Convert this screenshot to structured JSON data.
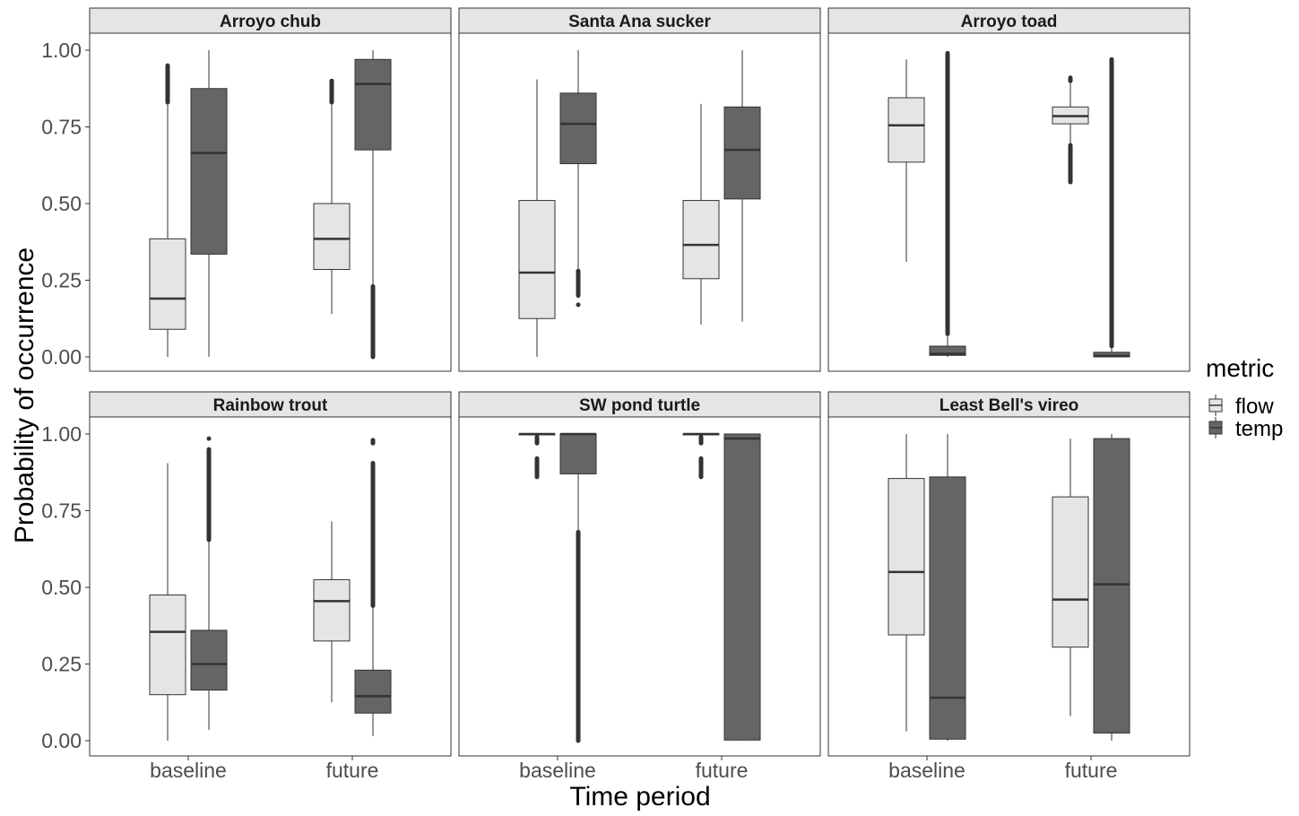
{
  "chart_data": {
    "type": "boxplot",
    "xlabel": "Time period",
    "ylabel": "Probability of occurrence",
    "categories": [
      "baseline",
      "future"
    ],
    "ylim": [
      0,
      1
    ],
    "yticks": [
      0,
      0.25,
      0.5,
      0.75,
      1
    ],
    "ytick_labels": [
      "0.00",
      "0.25",
      "0.50",
      "0.75",
      "1.00"
    ],
    "legend": {
      "title": "metric",
      "position": "right",
      "entries": [
        {
          "name": "flow",
          "color": "#e5e5e5"
        },
        {
          "name": "temp",
          "color": "#656565"
        }
      ]
    },
    "panels": [
      {
        "title": "Arroyo chub",
        "series": {
          "flow": [
            {
              "x": "baseline",
              "low": 0.0,
              "q1": 0.09,
              "median": 0.19,
              "q3": 0.385,
              "high": 0.83,
              "outliers": [
                [
                  0.83,
                  0.95
                ]
              ]
            },
            {
              "x": "future",
              "low": 0.14,
              "q1": 0.285,
              "median": 0.385,
              "q3": 0.5,
              "high": 0.83,
              "outliers": [
                [
                  0.83,
                  0.9
                ]
              ]
            }
          ],
          "temp": [
            {
              "x": "baseline",
              "low": 0.0,
              "q1": 0.335,
              "median": 0.665,
              "q3": 0.875,
              "high": 1.0,
              "outliers": []
            },
            {
              "x": "future",
              "low": 0.23,
              "q1": 0.675,
              "median": 0.89,
              "q3": 0.97,
              "high": 1.0,
              "outliers": [
                [
                  0.0,
                  0.23
                ]
              ]
            }
          ]
        }
      },
      {
        "title": "Santa Ana sucker",
        "series": {
          "flow": [
            {
              "x": "baseline",
              "low": 0.0,
              "q1": 0.125,
              "median": 0.275,
              "q3": 0.51,
              "high": 0.905,
              "outliers": []
            },
            {
              "x": "future",
              "low": 0.105,
              "q1": 0.255,
              "median": 0.365,
              "q3": 0.51,
              "high": 0.825,
              "outliers": []
            }
          ],
          "temp": [
            {
              "x": "baseline",
              "low": 0.28,
              "q1": 0.63,
              "median": 0.76,
              "q3": 0.86,
              "high": 1.0,
              "outliers": [
                [
                  0.2,
                  0.28
                ],
                [
                  0.17,
                  0.17
                ]
              ]
            },
            {
              "x": "future",
              "low": 0.115,
              "q1": 0.515,
              "median": 0.675,
              "q3": 0.815,
              "high": 1.0,
              "outliers": []
            }
          ]
        }
      },
      {
        "title": "Arroyo toad",
        "series": {
          "flow": [
            {
              "x": "baseline",
              "low": 0.31,
              "q1": 0.635,
              "median": 0.755,
              "q3": 0.845,
              "high": 0.97,
              "outliers": []
            },
            {
              "x": "future",
              "low": 0.69,
              "q1": 0.76,
              "median": 0.785,
              "q3": 0.815,
              "high": 0.895,
              "outliers": [
                [
                  0.57,
                  0.69
                ],
                [
                  0.9,
                  0.91
                ]
              ]
            }
          ],
          "temp": [
            {
              "x": "baseline",
              "low": 0.0,
              "q1": 0.005,
              "median": 0.01,
              "q3": 0.035,
              "high": 0.075,
              "outliers": [
                [
                  0.075,
                  0.99
                ]
              ]
            },
            {
              "x": "future",
              "low": 0.0,
              "q1": 0.0,
              "median": 0.003,
              "q3": 0.015,
              "high": 0.035,
              "outliers": [
                [
                  0.035,
                  0.97
                ]
              ]
            }
          ]
        }
      },
      {
        "title": "Rainbow trout",
        "series": {
          "flow": [
            {
              "x": "baseline",
              "low": 0.0,
              "q1": 0.15,
              "median": 0.355,
              "q3": 0.475,
              "high": 0.905,
              "outliers": []
            },
            {
              "x": "future",
              "low": 0.125,
              "q1": 0.325,
              "median": 0.455,
              "q3": 0.525,
              "high": 0.715,
              "outliers": []
            }
          ],
          "temp": [
            {
              "x": "baseline",
              "low": 0.035,
              "q1": 0.165,
              "median": 0.25,
              "q3": 0.36,
              "high": 0.655,
              "outliers": [
                [
                  0.655,
                  0.95
                ],
                [
                  0.985,
                  0.985
                ]
              ]
            },
            {
              "x": "future",
              "low": 0.015,
              "q1": 0.09,
              "median": 0.145,
              "q3": 0.23,
              "high": 0.44,
              "outliers": [
                [
                  0.44,
                  0.905
                ],
                [
                  0.97,
                  0.98
                ]
              ]
            }
          ]
        }
      },
      {
        "title": "SW pond turtle",
        "series": {
          "flow": [
            {
              "x": "baseline",
              "low": 0.999,
              "q1": 0.999,
              "median": 1.0,
              "q3": 1.0,
              "high": 1.0,
              "outliers": [
                [
                  0.86,
                  0.92
                ],
                [
                  0.97,
                  0.99
                ]
              ]
            },
            {
              "x": "future",
              "low": 0.999,
              "q1": 0.999,
              "median": 1.0,
              "q3": 1.0,
              "high": 1.0,
              "outliers": [
                [
                  0.86,
                  0.92
                ],
                [
                  0.97,
                  0.99
                ]
              ]
            }
          ],
          "temp": [
            {
              "x": "baseline",
              "low": 0.68,
              "q1": 0.87,
              "median": 1.0,
              "q3": 1.0,
              "high": 1.0,
              "outliers": [
                [
                  0.0,
                  0.68
                ]
              ]
            },
            {
              "x": "future",
              "low": 0.0,
              "q1": 0.002,
              "median": 0.985,
              "q3": 1.0,
              "high": 1.0,
              "outliers": []
            }
          ]
        }
      },
      {
        "title": "Least Bell's vireo",
        "series": {
          "flow": [
            {
              "x": "baseline",
              "low": 0.03,
              "q1": 0.345,
              "median": 0.55,
              "q3": 0.855,
              "high": 1.0,
              "outliers": []
            },
            {
              "x": "future",
              "low": 0.08,
              "q1": 0.305,
              "median": 0.46,
              "q3": 0.795,
              "high": 0.985,
              "outliers": []
            }
          ],
          "temp": [
            {
              "x": "baseline",
              "low": 0.0,
              "q1": 0.005,
              "median": 0.14,
              "q3": 0.86,
              "high": 1.0,
              "outliers": []
            },
            {
              "x": "future",
              "low": 0.0,
              "q1": 0.025,
              "median": 0.51,
              "q3": 0.985,
              "high": 1.0,
              "outliers": []
            }
          ]
        }
      }
    ]
  }
}
